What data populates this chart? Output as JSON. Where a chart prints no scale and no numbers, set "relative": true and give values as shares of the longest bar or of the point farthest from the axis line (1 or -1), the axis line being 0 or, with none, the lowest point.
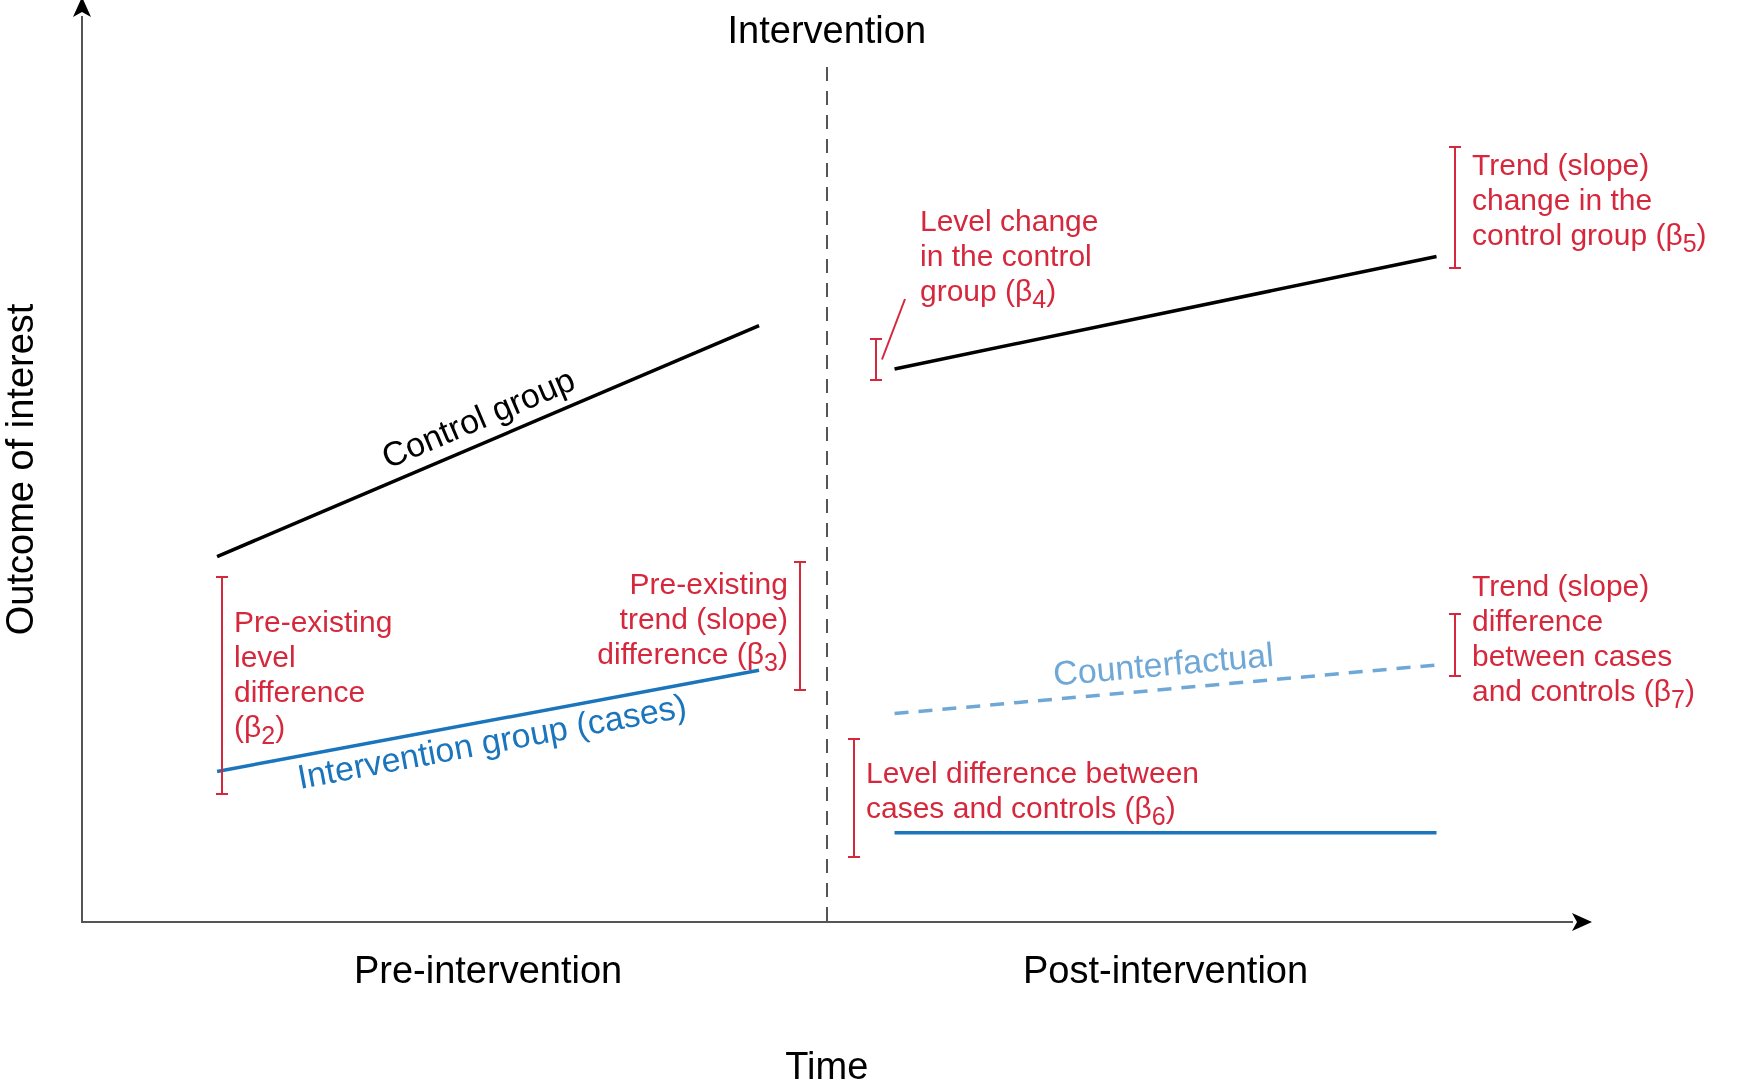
{
  "chart_data": {
    "type": "line",
    "xlabel": "Time",
    "ylabel": "Outcome of interest",
    "categories": [
      null,
      null,
      null,
      "Pre-intervention",
      null,
      null,
      null,
      null,
      "Post-intervention",
      null,
      null,
      null
    ],
    "relative": true,
    "grid": false,
    "legend": false,
    "marker": "none",
    "series": [
      {
        "name": "Control group",
        "color": "#000000",
        "values": [
          null,
          0.549,
          null,
          null,
          null,
          0.896,
          null,
          null,
          null,
          null,
          null,
          null
        ]
      },
      {
        "color": "#000000",
        "values": [
          null,
          null,
          null,
          null,
          null,
          null,
          0.831,
          null,
          null,
          null,
          1,
          null
        ]
      },
      {
        "name": "Intervention group (cases)",
        "color": "#1a75bc",
        "values": [
          null,
          0.226,
          null,
          null,
          null,
          0.378,
          null,
          null,
          null,
          null,
          null,
          null
        ]
      },
      {
        "color": "#1a75bc",
        "values": [
          null,
          null,
          null,
          null,
          null,
          null,
          0.134,
          null,
          null,
          null,
          0.134,
          null
        ]
      },
      {
        "name": "Counterfactual",
        "color": "#6fa8d6",
        "line_style": "dashed",
        "values": [
          null,
          null,
          null,
          null,
          null,
          null,
          0.313,
          null,
          null,
          null,
          0.386,
          null
        ]
      }
    ],
    "annotations": [
      "Intervention",
      "Pre-existing level difference (β$_{2}$)",
      "Pre-existing trend (slope) difference (β$_{3}$)",
      "Level change in the control group (β$_{4}$)",
      "Trend (slope) change in the control group (β$_{5}$)",
      "Trend (slope) difference between cases and controls (β$_{7}$)",
      "Level difference between cases and controls (β$_{6}$)"
    ]
  }
}
